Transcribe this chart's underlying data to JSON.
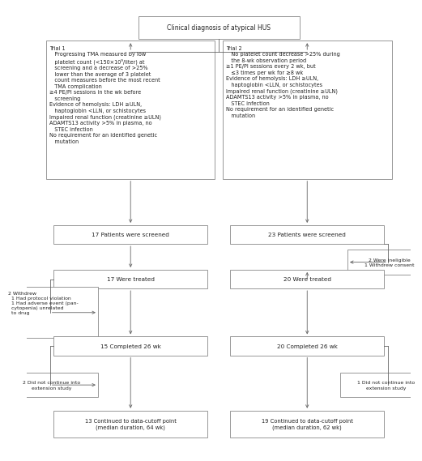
{
  "title": "Clinical diagnosis of atypical HUS",
  "background_color": "#ffffff",
  "box_edge_color": "#888888",
  "arrow_color": "#666666",
  "text_color": "#222222",
  "font_size": 5.2,
  "trial1_label": "Trial 1",
  "trial1_criteria": "   Progressing TMA measured by low\n   platelet count (<150×10⁹/liter) at\n   screening and a decrease of >25%\n   lower than the average of 3 platelet\n   count measures before the most recent\n   TMA complication\n≥4 PE/PI sessions in the wk before\n   screening\nEvidence of hemolysis: LDH ≥ULN,\n   haptoglobin <LLN, or schistocytes\nImpaired renal function (creatinine ≥ULN)\nADAMTS13 activity >5% in plasma, no\n   STEC infection\nNo requirement for an identified genetic\n   mutation",
  "trial2_label": "Trial 2",
  "trial2_criteria": "   No platelet count decrease >25% during\n   the 8-wk observation period\n≥1 PE/PI sessions every 2 wk, but\n   ≤3 times per wk for ≥8 wk\nEvidence of hemolysis: LDH ≥ULN,\n   haptoglobin <LLN, or schistocytes\nImpaired renal function (creatinine ≥ULN)\nADAMTS13 activity >5% in plasma, no\n   STEC infection\nNo requirement for an identified genetic\n   mutation",
  "t1_screened": "17 Patients were screened",
  "t2_screened": "23 Patients were screened",
  "t2_excluded": "2 Were ineligible\n1 Withdrew consent",
  "t1_treated": "17 Were treated",
  "t2_treated": "20 Were treated",
  "t1_withdrew": "2 Withdrew\n  1 Had protocol violation\n  1 Had adverse event (pan-\n  cytopenia) unrelated\n  to drug",
  "t1_completed": "15 Completed 26 wk",
  "t2_completed": "20 Completed 26 wk",
  "t1_not_continue": "2 Did not continue into\nextension study",
  "t2_not_continue": "1 Did not continue into\nextension study",
  "t1_cutoff": "13 Continued to data-cutoff point\n(median duration, 64 wk)",
  "t2_cutoff": "19 Continued to data-cutoff point\n(median duration, 62 wk)"
}
